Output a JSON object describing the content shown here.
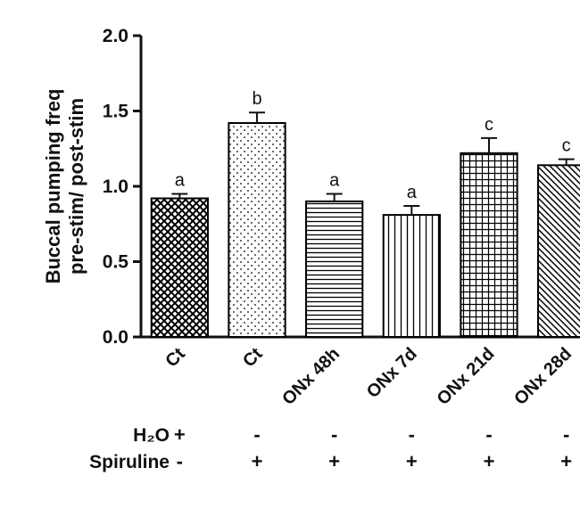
{
  "figure": {
    "background": "#ffffff",
    "ink_color": "#111111"
  },
  "chart_data": {
    "type": "bar",
    "title": "",
    "ylabel": "Buccal pumping freq pre-stim/ post-stim",
    "ylabel_lines": [
      "Buccal pumping freq",
      "pre-stim/ post-stim"
    ],
    "xlabel": "",
    "ylim": [
      0,
      2.0
    ],
    "ytick_labels": [
      "0.0",
      "0.5",
      "1.0",
      "1.5",
      "2.0"
    ],
    "grid": "off",
    "legend": "none",
    "categories": [
      "Ct",
      "Ct",
      "ONx 48h",
      "ONx 7d",
      "ONx 21d",
      "ONx 28d"
    ],
    "values": [
      0.92,
      1.42,
      0.9,
      0.81,
      1.22,
      1.14
    ],
    "errors": [
      0.03,
      0.07,
      0.05,
      0.06,
      0.1,
      0.04
    ],
    "sig_letters": [
      "a",
      "b",
      "a",
      "a",
      "c",
      "c"
    ],
    "patterns": [
      "crosshatch",
      "dots",
      "horizontal-lines",
      "vertical-lines",
      "grid",
      "diagonal-lines"
    ],
    "bar_fill": "#ffffff",
    "bar_stroke": "#000000",
    "treatment_rows": [
      {
        "label": "H₂O",
        "values": [
          "+",
          "-",
          "-",
          "-",
          "-",
          "-"
        ]
      },
      {
        "label": "Spiruline",
        "values": [
          "-",
          "+",
          "+",
          "+",
          "+",
          "+"
        ]
      }
    ]
  }
}
